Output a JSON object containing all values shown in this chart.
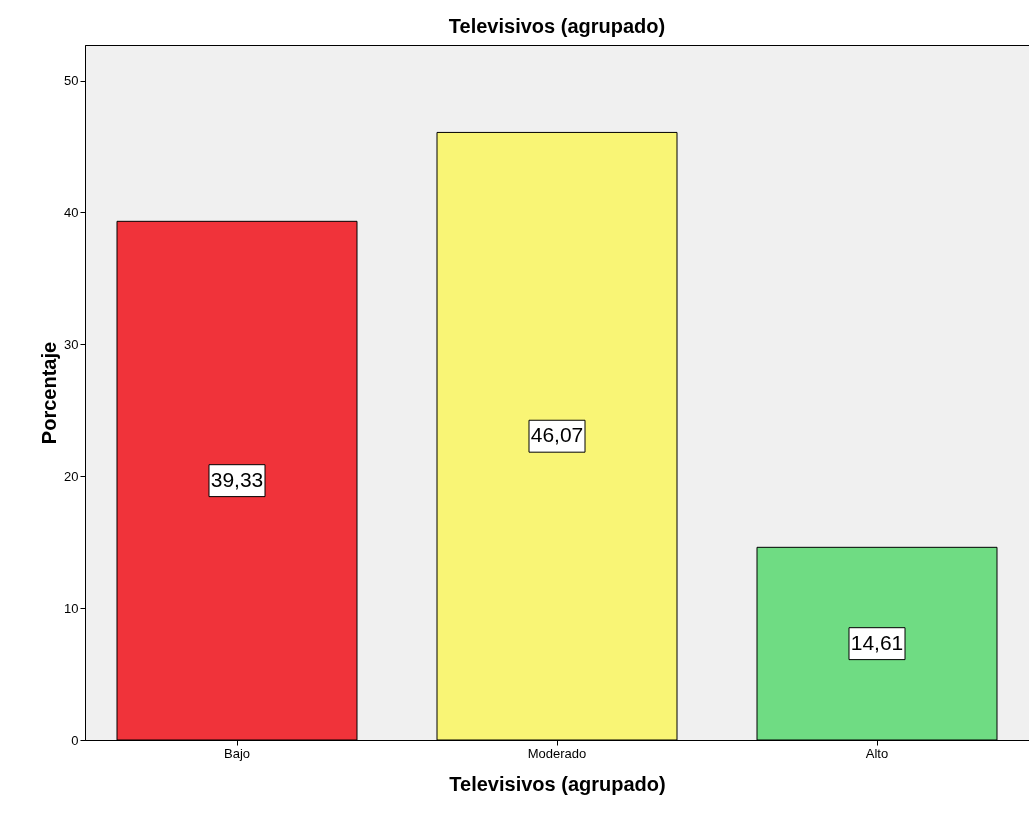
{
  "chart_data": {
    "type": "bar",
    "title": "Televisivos (agrupado)",
    "xlabel": "Televisivos (agrupado)",
    "ylabel": "Porcentaje",
    "categories": [
      "Bajo",
      "Moderado",
      "Alto"
    ],
    "values": [
      39.33,
      46.07,
      14.61
    ],
    "colors": [
      "#f0333a",
      "#f9f575",
      "#6fdc83"
    ],
    "value_labels": [
      "39,33",
      "46,07",
      "14,61"
    ],
    "ylim": [
      0,
      52.7
    ],
    "yticks": [
      0,
      10,
      20,
      30,
      40,
      50
    ],
    "grid": false
  }
}
